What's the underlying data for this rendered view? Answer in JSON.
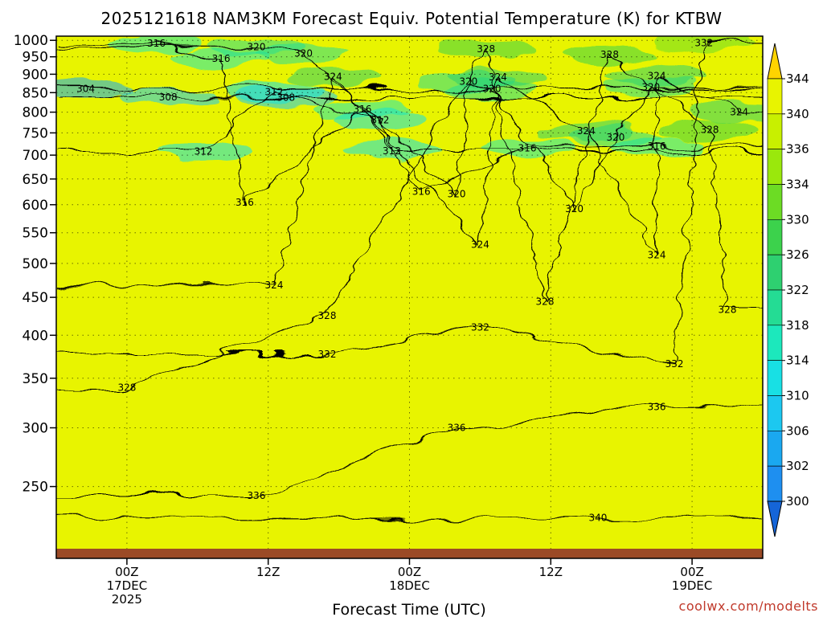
{
  "chart_data": {
    "type": "heatmap",
    "title": "2025121618 NAM3KM Forecast Equiv. Potential Temperature (K) for KTBW",
    "xlabel": "Forecast Time (UTC)",
    "ylabel": "",
    "credit": "coolwx.com/modelts",
    "y_scale": "log",
    "y_axis": {
      "ticks": [
        250,
        300,
        350,
        400,
        450,
        500,
        550,
        600,
        650,
        700,
        750,
        800,
        850,
        900,
        950,
        1000
      ],
      "range": [
        1013,
        200
      ]
    },
    "x_axis": {
      "range": [
        "2025-12-16 18Z",
        "2025-12-19 06Z"
      ],
      "ticks": [
        {
          "line1": "00Z",
          "line2": "17DEC",
          "line3": "2025",
          "hour_offset": 6
        },
        {
          "line1": "12Z",
          "line2": "",
          "line3": "",
          "hour_offset": 18
        },
        {
          "line1": "00Z",
          "line2": "18DEC",
          "line3": "",
          "hour_offset": 30
        },
        {
          "line1": "12Z",
          "line2": "",
          "line3": "",
          "hour_offset": 42
        },
        {
          "line1": "00Z",
          "line2": "19DEC",
          "line3": "",
          "hour_offset": 54
        }
      ],
      "max_hour_offset": 60
    },
    "colorbar": {
      "levels": [
        300,
        302,
        306,
        310,
        314,
        318,
        322,
        326,
        330,
        334,
        336,
        340,
        344
      ],
      "colors": [
        "#1e8ff0",
        "#1aa8f0",
        "#1cc8f0",
        "#18e0e4",
        "#1ce8bc",
        "#24dc94",
        "#2ed070",
        "#3cd24c",
        "#6cdc24",
        "#9ae80c",
        "#c8f000",
        "#e8f400",
        "#ffee00"
      ],
      "under_color": "#1565d8",
      "over_color": "#ffd400"
    },
    "surface_color": "#9b4a26",
    "grid": true,
    "contours": [
      {
        "value": 304,
        "label": "304",
        "hour_offset": 2.5,
        "pressure": 860
      },
      {
        "value": 308,
        "label": "308",
        "hour_offset": 9.5,
        "pressure": 838
      },
      {
        "value": 308,
        "label": "308",
        "hour_offset": 19.5,
        "pressure": 837
      },
      {
        "value": 312,
        "label": "312",
        "hour_offset": 18.5,
        "pressure": 852
      },
      {
        "value": 312,
        "label": "312",
        "hour_offset": 12.5,
        "pressure": 708
      },
      {
        "value": 312,
        "label": "312",
        "hour_offset": 28.5,
        "pressure": 709
      },
      {
        "value": 312,
        "label": "312",
        "hour_offset": 27.5,
        "pressure": 780
      },
      {
        "value": 316,
        "label": "316",
        "hour_offset": 16,
        "pressure": 604
      },
      {
        "value": 316,
        "label": "316",
        "hour_offset": 31,
        "pressure": 625
      },
      {
        "value": 316,
        "label": "316",
        "hour_offset": 26,
        "pressure": 807
      },
      {
        "value": 316,
        "label": "316",
        "hour_offset": 40,
        "pressure": 715
      },
      {
        "value": 316,
        "label": "316",
        "hour_offset": 51,
        "pressure": 720
      },
      {
        "value": 316,
        "label": "316",
        "hour_offset": 14,
        "pressure": 945
      },
      {
        "value": 316,
        "label": "316",
        "hour_offset": 8.5,
        "pressure": 990
      },
      {
        "value": 320,
        "label": "320",
        "hour_offset": 34,
        "pressure": 620
      },
      {
        "value": 320,
        "label": "320",
        "hour_offset": 44,
        "pressure": 592
      },
      {
        "value": 320,
        "label": "320",
        "hour_offset": 47.5,
        "pressure": 740
      },
      {
        "value": 320,
        "label": "320",
        "hour_offset": 37,
        "pressure": 860
      },
      {
        "value": 320,
        "label": "320",
        "hour_offset": 35,
        "pressure": 880
      },
      {
        "value": 320,
        "label": "320",
        "hour_offset": 50.5,
        "pressure": 865
      },
      {
        "value": 320,
        "label": "320",
        "hour_offset": 17,
        "pressure": 980
      },
      {
        "value": 320,
        "label": "320",
        "hour_offset": 21,
        "pressure": 960
      },
      {
        "value": 324,
        "label": "324",
        "hour_offset": 18.5,
        "pressure": 467
      },
      {
        "value": 324,
        "label": "324",
        "hour_offset": 36,
        "pressure": 530
      },
      {
        "value": 324,
        "label": "324",
        "hour_offset": 51,
        "pressure": 513
      },
      {
        "value": 324,
        "label": "324",
        "hour_offset": 45,
        "pressure": 755
      },
      {
        "value": 324,
        "label": "324",
        "hour_offset": 23.5,
        "pressure": 893
      },
      {
        "value": 324,
        "label": "324",
        "hour_offset": 37.5,
        "pressure": 892
      },
      {
        "value": 324,
        "label": "324",
        "hour_offset": 51,
        "pressure": 895
      },
      {
        "value": 324,
        "label": "324",
        "hour_offset": 58,
        "pressure": 800
      },
      {
        "value": 328,
        "label": "328",
        "hour_offset": 6,
        "pressure": 340
      },
      {
        "value": 328,
        "label": "328",
        "hour_offset": 23,
        "pressure": 425
      },
      {
        "value": 328,
        "label": "328",
        "hour_offset": 36.5,
        "pressure": 973
      },
      {
        "value": 328,
        "label": "328",
        "hour_offset": 47,
        "pressure": 957
      },
      {
        "value": 328,
        "label": "328",
        "hour_offset": 41.5,
        "pressure": 444
      },
      {
        "value": 328,
        "label": "328",
        "hour_offset": 55.5,
        "pressure": 757
      },
      {
        "value": 328,
        "label": "328",
        "hour_offset": 57,
        "pressure": 433
      },
      {
        "value": 332,
        "label": "332",
        "hour_offset": 23,
        "pressure": 377
      },
      {
        "value": 332,
        "label": "332",
        "hour_offset": 36,
        "pressure": 410
      },
      {
        "value": 332,
        "label": "332",
        "hour_offset": 52.5,
        "pressure": 366
      },
      {
        "value": 332,
        "label": "332",
        "hour_offset": 55,
        "pressure": 992
      },
      {
        "value": 336,
        "label": "336",
        "hour_offset": 17,
        "pressure": 243
      },
      {
        "value": 336,
        "label": "336",
        "hour_offset": 34,
        "pressure": 300
      },
      {
        "value": 336,
        "label": "336",
        "hour_offset": 51,
        "pressure": 320
      },
      {
        "value": 340,
        "label": "340",
        "hour_offset": 46,
        "pressure": 227
      }
    ]
  }
}
